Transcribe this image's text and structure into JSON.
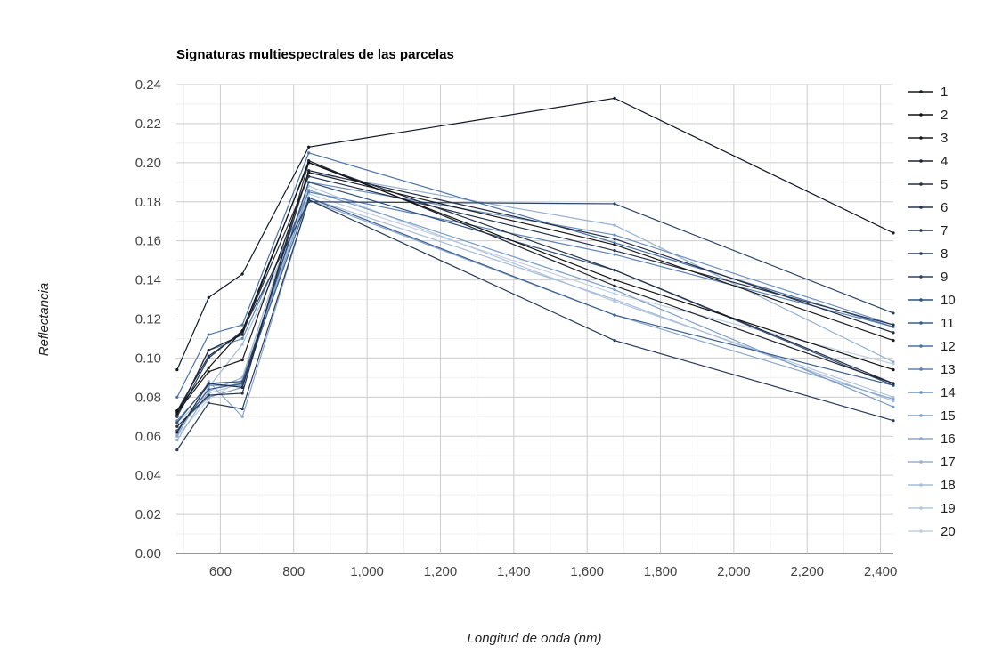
{
  "chart_data": {
    "type": "line",
    "title": "Signaturas multiespectrales de las parcelas",
    "xlabel": "Longitud de onda (nm)",
    "ylabel": "Reflectancia",
    "xlim": [
      480,
      2435
    ],
    "ylim": [
      0,
      0.24
    ],
    "x_ticks": [
      600,
      800,
      1000,
      1200,
      1400,
      1600,
      1800,
      2000,
      2200,
      2400
    ],
    "x_tick_labels": [
      "600",
      "800",
      "1,000",
      "1,200",
      "1,400",
      "1,600",
      "1,800",
      "2,000",
      "2,200",
      "2,400"
    ],
    "y_ticks": [
      0,
      0.02,
      0.04,
      0.06,
      0.08,
      0.1,
      0.12,
      0.14,
      0.16,
      0.18,
      0.2,
      0.22,
      0.24
    ],
    "y_tick_labels": [
      "0.00",
      "0.02",
      "0.04",
      "0.06",
      "0.08",
      "0.10",
      "0.12",
      "0.14",
      "0.16",
      "0.18",
      "0.20",
      "0.22",
      "0.24"
    ],
    "grid": true,
    "legend_position": "right",
    "x": [
      482,
      568,
      660,
      841,
      1675,
      2435
    ],
    "series": [
      {
        "name": "1",
        "color": "#111827",
        "values": [
          0.094,
          0.131,
          0.143,
          0.208,
          0.233,
          0.164
        ]
      },
      {
        "name": "2",
        "color": "#111111",
        "values": [
          0.073,
          0.095,
          0.114,
          0.2,
          0.14,
          0.094
        ]
      },
      {
        "name": "3",
        "color": "#1a1a1a",
        "values": [
          0.072,
          0.093,
          0.099,
          0.195,
          0.158,
          0.109
        ]
      },
      {
        "name": "4",
        "color": "#1f2430",
        "values": [
          0.071,
          0.104,
          0.112,
          0.201,
          0.137,
          0.087
        ]
      },
      {
        "name": "5",
        "color": "#232d40",
        "values": [
          0.062,
          0.087,
          0.085,
          0.196,
          0.161,
          0.113
        ]
      },
      {
        "name": "6",
        "color": "#263248",
        "values": [
          0.065,
          0.081,
          0.082,
          0.2,
          0.145,
          0.087
        ]
      },
      {
        "name": "7",
        "color": "#26324a",
        "values": [
          0.073,
          0.101,
          0.113,
          0.193,
          0.155,
          0.117
        ]
      },
      {
        "name": "8",
        "color": "#273a5a",
        "values": [
          0.053,
          0.077,
          0.074,
          0.181,
          0.109,
          0.068
        ]
      },
      {
        "name": "9",
        "color": "#2b4366",
        "values": [
          0.07,
          0.1,
          0.114,
          0.18,
          0.179,
          0.123
        ]
      },
      {
        "name": "10",
        "color": "#30507a",
        "values": [
          0.067,
          0.087,
          0.088,
          0.19,
          0.145,
          0.086
        ]
      },
      {
        "name": "11",
        "color": "#3a5f8f",
        "values": [
          0.063,
          0.084,
          0.087,
          0.182,
          0.122,
          0.086
        ]
      },
      {
        "name": "12",
        "color": "#4a72a8",
        "values": [
          0.08,
          0.112,
          0.117,
          0.205,
          0.159,
          0.116
        ]
      },
      {
        "name": "13",
        "color": "#5a81b5",
        "values": [
          0.07,
          0.104,
          0.11,
          0.185,
          0.153,
          0.116
        ]
      },
      {
        "name": "14",
        "color": "#6a8fc0",
        "values": [
          0.068,
          0.086,
          0.086,
          0.19,
          0.163,
          0.117
        ]
      },
      {
        "name": "15",
        "color": "#7c9dc8",
        "values": [
          0.065,
          0.08,
          0.085,
          0.186,
          0.135,
          0.075
        ]
      },
      {
        "name": "16",
        "color": "#8aa7cc",
        "values": [
          0.06,
          0.088,
          0.07,
          0.181,
          0.122,
          0.079
        ]
      },
      {
        "name": "17",
        "color": "#98b1d2",
        "values": [
          0.058,
          0.083,
          0.09,
          0.195,
          0.168,
          0.098
        ]
      },
      {
        "name": "18",
        "color": "#a6bcd8",
        "values": [
          0.061,
          0.085,
          0.107,
          0.182,
          0.13,
          0.078
        ]
      },
      {
        "name": "19",
        "color": "#b4c6de",
        "values": [
          0.067,
          0.082,
          0.087,
          0.188,
          0.129,
          0.08
        ]
      },
      {
        "name": "20",
        "color": "#c2d0e4",
        "values": [
          0.06,
          0.079,
          0.089,
          0.184,
          0.133,
          0.097
        ]
      }
    ]
  }
}
